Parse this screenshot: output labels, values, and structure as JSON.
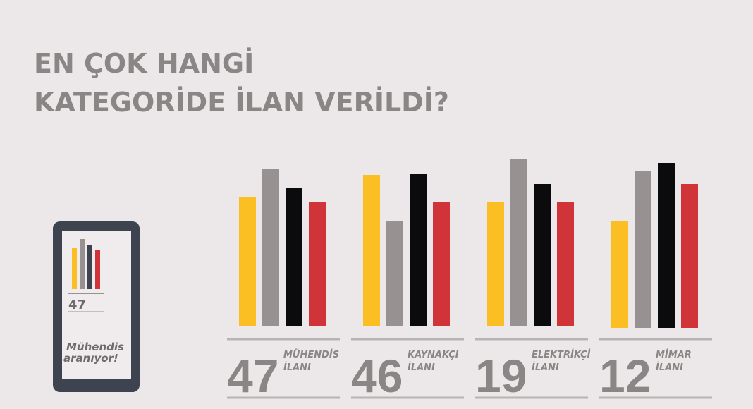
{
  "title": [
    "EN ÇOK HANGİ",
    "KATEGORİDE İLAN VERİLDİ?"
  ],
  "groups": [
    {
      "number": 47,
      "label": [
        "MÜHENDİS",
        "İLANI"
      ]
    },
    {
      "number": 46,
      "label": [
        "KAYNAKÇI",
        "İLANI"
      ]
    },
    {
      "number": 19,
      "label": [
        "ELEKTRİKÇİ",
        "İLANI"
      ]
    },
    {
      "number": 12,
      "label": [
        "MİMAR",
        "İLANI"
      ]
    }
  ],
  "phone": {
    "number": 47,
    "slogan": [
      "Mühendis",
      "aranıyor!"
    ]
  }
}
